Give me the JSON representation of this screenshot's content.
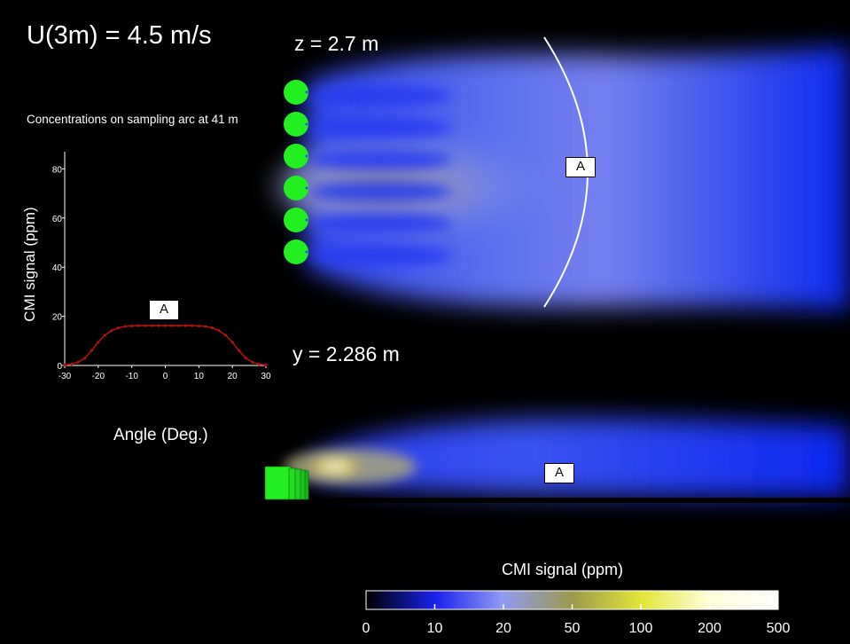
{
  "header": {
    "title": "U(3m) = 4.5 m/s",
    "plan_view_label": "z = 2.7 m",
    "side_view_label": "y = 2.286 m"
  },
  "arc_tag": "A",
  "side_tag": "A",
  "source_count": 6,
  "inset_chart": {
    "caption": "Concentrations on sampling arc at 41 m",
    "tag": "A",
    "chart_data": {
      "type": "scatter",
      "title": "Concentrations on sampling arc at 41 m",
      "xlabel": "Angle (Deg.)",
      "ylabel": "CMI signal (ppm)",
      "xlim": [
        -30,
        30
      ],
      "ylim": [
        0,
        87
      ],
      "xticks": [
        -30,
        -20,
        -10,
        0,
        10,
        20,
        30
      ],
      "yticks": [
        0,
        20,
        40,
        60,
        80
      ],
      "grid": false,
      "series": [
        {
          "color": "#b01010",
          "x": [
            -30,
            -28,
            -26,
            -24,
            -22,
            -20,
            -18,
            -16,
            -14,
            -12,
            -10,
            -8,
            -6,
            -4,
            -2,
            0,
            2,
            4,
            6,
            8,
            10,
            12,
            14,
            16,
            18,
            20,
            22,
            24,
            26,
            28,
            30
          ],
          "y": [
            0.2,
            0.5,
            1.3,
            3.0,
            6.0,
            9.5,
            12.3,
            14.2,
            15.3,
            15.9,
            16.1,
            16.2,
            16.2,
            16.2,
            16.2,
            16.2,
            16.2,
            16.2,
            16.2,
            16.2,
            16.1,
            15.9,
            15.3,
            14.2,
            12.3,
            9.5,
            6.0,
            3.0,
            1.3,
            0.5,
            0.2
          ]
        }
      ]
    }
  },
  "colorbar": {
    "title": "CMI signal (ppm)",
    "ticks": [
      "0",
      "10",
      "20",
      "50",
      "100",
      "200",
      "500"
    ],
    "colors": [
      "#000000",
      "#1a22ee",
      "#8f9bf2",
      "#9c9a4c",
      "#e5e53a",
      "#fdfdd8",
      "#ffffff"
    ]
  }
}
